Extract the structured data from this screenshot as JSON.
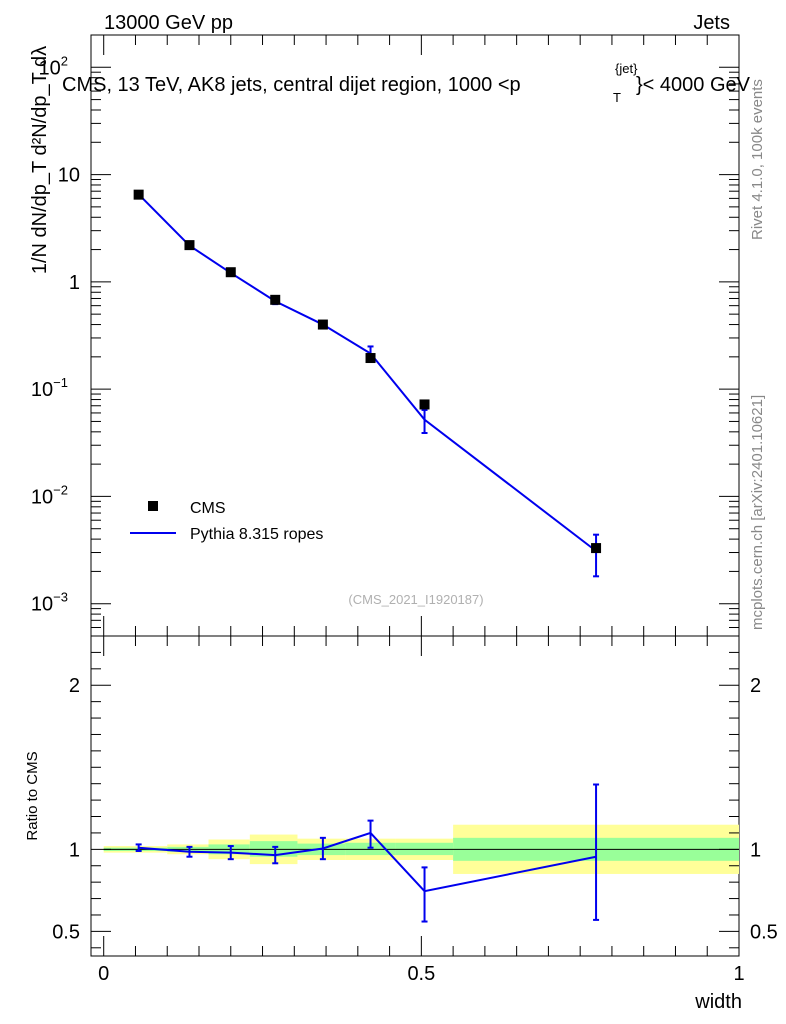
{
  "header": {
    "energy": "13000 GeV pp",
    "category": "Jets",
    "rivet_label": "Rivet 4.1.0,  100k events",
    "mcplots_label": "mcplots.cern.ch [arXiv:2401.10621]",
    "reference": "(CMS_2021_I1920187)"
  },
  "chart_data": [
    {
      "type": "scatter",
      "panel": "main",
      "title_main": "CMS, 13 TeV, AK8 jets, central dijet region, 1000 <p",
      "title_sup": "{jet}",
      "title_sub": "T",
      "title_tail": "}< 4000 GeV",
      "ylabel": "1/N dN/dp_T d²N/dp_T dλ",
      "yscale": "log",
      "ylim": [
        0.0005,
        200
      ],
      "xlim": [
        -0.02,
        1.0
      ],
      "y_ticks": [
        {
          "value": 0.001,
          "base": "10",
          "exp": "−3"
        },
        {
          "value": 0.01,
          "base": "10",
          "exp": "−2"
        },
        {
          "value": 0.1,
          "base": "10",
          "exp": "−1"
        },
        {
          "value": 1,
          "base": "1",
          "exp": ""
        },
        {
          "value": 10,
          "base": "10",
          "exp": ""
        },
        {
          "value": 100,
          "base": "10",
          "exp": "2"
        }
      ],
      "legend": {
        "position": "bottom-left",
        "entries": [
          "CMS",
          "Pythia 8.315 ropes"
        ]
      },
      "series": [
        {
          "name": "CMS",
          "marker": "square",
          "color": "#000000",
          "x": [
            0.055,
            0.135,
            0.2,
            0.27,
            0.345,
            0.42,
            0.505,
            0.775
          ],
          "y": [
            6.5,
            2.2,
            1.23,
            0.68,
            0.4,
            0.195,
            0.072,
            0.0033
          ]
        },
        {
          "name": "Pythia 8.315 ropes",
          "color": "#0000ee",
          "x": [
            0.055,
            0.135,
            0.2,
            0.27,
            0.345,
            0.42,
            0.505,
            0.775
          ],
          "y": [
            6.55,
            2.18,
            1.21,
            0.66,
            0.4,
            0.215,
            0.052,
            0.0031
          ],
          "err_low": [
            6.3,
            2.1,
            1.16,
            0.62,
            0.37,
            0.185,
            0.039,
            0.0018
          ],
          "err_high": [
            6.8,
            2.27,
            1.27,
            0.7,
            0.43,
            0.25,
            0.064,
            0.0044
          ]
        }
      ]
    },
    {
      "type": "line",
      "panel": "ratio",
      "ylabel": "Ratio to CMS",
      "xlabel": "width",
      "xlim": [
        -0.02,
        1.0
      ],
      "ylim": [
        0.35,
        2.3
      ],
      "x_ticks": [
        {
          "value": 0,
          "label": "0"
        },
        {
          "value": 0.5,
          "label": "0.5"
        },
        {
          "value": 1,
          "label": "1"
        }
      ],
      "y_ticks": [
        {
          "value": 0.5,
          "label": "0.5"
        },
        {
          "value": 1,
          "label": "1"
        },
        {
          "value": 2,
          "label": "2"
        }
      ],
      "bands": [
        {
          "x0": 0.0,
          "x1": 0.1,
          "green": [
            0.99,
            1.01
          ],
          "yellow": [
            0.98,
            1.02
          ]
        },
        {
          "x0": 0.1,
          "x1": 0.165,
          "green": [
            0.985,
            1.015
          ],
          "yellow": [
            0.97,
            1.03
          ]
        },
        {
          "x0": 0.165,
          "x1": 0.23,
          "green": [
            0.97,
            1.03
          ],
          "yellow": [
            0.94,
            1.06
          ]
        },
        {
          "x0": 0.23,
          "x1": 0.305,
          "green": [
            0.955,
            1.05
          ],
          "yellow": [
            0.91,
            1.09
          ]
        },
        {
          "x0": 0.305,
          "x1": 0.38,
          "green": [
            0.965,
            1.035
          ],
          "yellow": [
            0.935,
            1.065
          ]
        },
        {
          "x0": 0.38,
          "x1": 0.46,
          "green": [
            0.965,
            1.04
          ],
          "yellow": [
            0.935,
            1.065
          ]
        },
        {
          "x0": 0.46,
          "x1": 0.55,
          "green": [
            0.965,
            1.04
          ],
          "yellow": [
            0.935,
            1.065
          ]
        },
        {
          "x0": 0.55,
          "x1": 1.0,
          "green": [
            0.93,
            1.07
          ],
          "yellow": [
            0.85,
            1.15
          ]
        }
      ],
      "series": [
        {
          "name": "Pythia 8.315 ropes / CMS",
          "color": "#0000ee",
          "x": [
            0.055,
            0.135,
            0.2,
            0.27,
            0.345,
            0.42,
            0.505,
            0.775
          ],
          "y": [
            1.01,
            0.985,
            0.98,
            0.965,
            1.005,
            1.1,
            0.745,
            0.955
          ],
          "err_low": [
            0.99,
            0.955,
            0.94,
            0.915,
            0.94,
            1.01,
            0.56,
            0.57
          ],
          "err_high": [
            1.03,
            1.015,
            1.02,
            1.015,
            1.07,
            1.175,
            0.89,
            1.395
          ]
        }
      ]
    }
  ]
}
